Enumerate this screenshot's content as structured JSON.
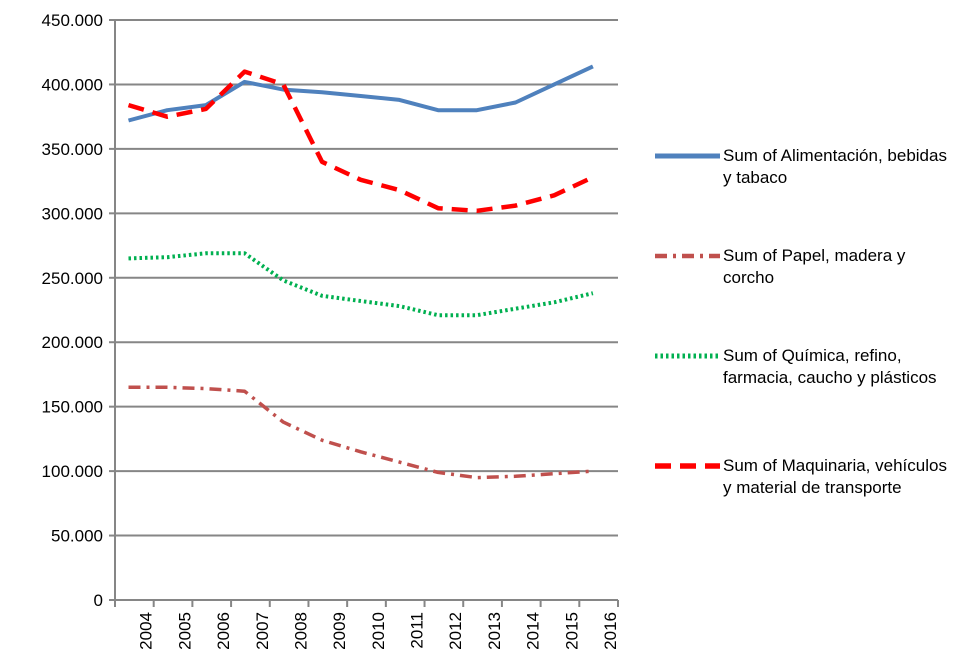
{
  "chart_data": {
    "type": "line",
    "categories": [
      "2004",
      "2005",
      "2006",
      "2007",
      "2008",
      "2009",
      "2010",
      "2011",
      "2012",
      "2013",
      "2014",
      "2015",
      "2016"
    ],
    "series": [
      {
        "name": "Sum of Alimentación, bebidas y tabaco",
        "color": "#4f81bd",
        "line_style": "solid",
        "values": [
          372,
          380,
          384,
          402,
          396,
          394,
          391,
          388,
          380,
          380,
          386,
          400,
          414
        ]
      },
      {
        "name": "Sum of Papel, madera y corcho",
        "color": "#c0504d",
        "line_style": "dash-dot",
        "values": [
          165,
          165,
          164,
          162,
          138,
          124,
          115,
          107,
          99,
          95,
          96,
          98,
          100
        ]
      },
      {
        "name": "Sum of Química, refino, farmacia, caucho y plásticos",
        "color": "#00b050",
        "line_style": "dotted",
        "values": [
          265,
          266,
          269,
          269,
          248,
          236,
          232,
          228,
          221,
          221,
          226,
          231,
          238
        ]
      },
      {
        "name": "Sum of Maquinaria, vehículos y material de transporte",
        "color": "#ff0000",
        "line_style": "dashed",
        "values": [
          384,
          375,
          381,
          410,
          400,
          340,
          326,
          318,
          304,
          302,
          306,
          314,
          328
        ]
      }
    ],
    "ylim": [
      0,
      450
    ],
    "yticks": [
      0,
      {
        "value": 50,
        "label": "50.000"
      },
      {
        "value": 100,
        "label": "100.000"
      },
      {
        "value": 150,
        "label": "150.000"
      },
      {
        "value": 200,
        "label": "200.000"
      },
      {
        "value": 250,
        "label": "250.000"
      },
      {
        "value": 300,
        "label": "300.000"
      },
      {
        "value": 350,
        "label": "350.000"
      },
      {
        "value": 400,
        "label": "400.000"
      },
      {
        "value": 450,
        "label": "450.000"
      }
    ],
    "grid": true,
    "legend": "right"
  }
}
